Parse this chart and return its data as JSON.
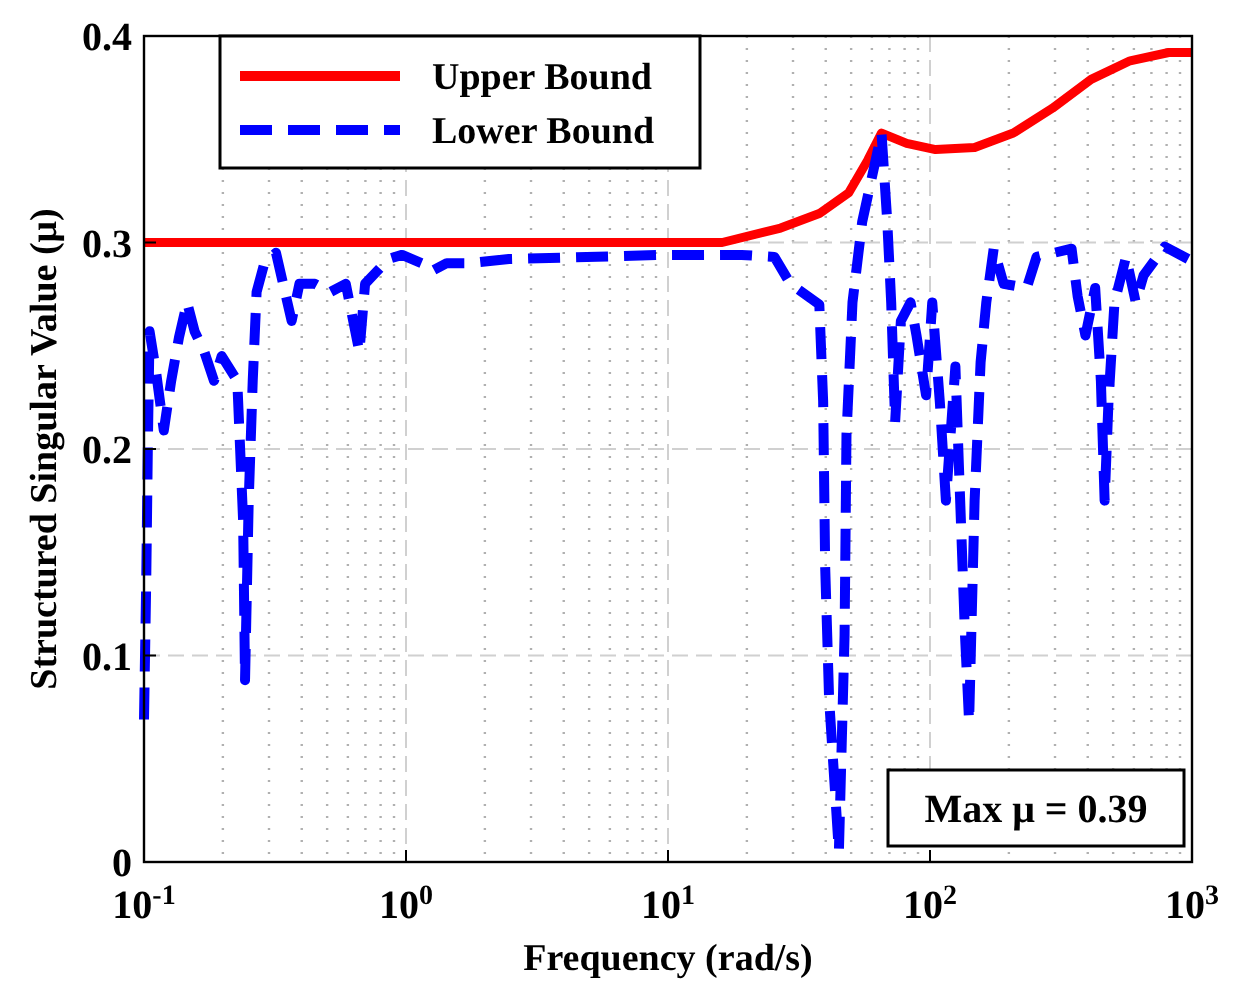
{
  "chart_data": {
    "type": "line",
    "xlabel": "Frequency (rad/s)",
    "ylabel": "Structured Singular Value (μ)",
    "log": "x",
    "xlim": [
      0.1,
      1000
    ],
    "xticks": [
      {
        "value": 0.1,
        "label": "10$^{-1}$"
      },
      {
        "value": 1,
        "label": "10$^{0}$"
      },
      {
        "value": 10,
        "label": "10$^{1}$"
      },
      {
        "value": 100,
        "label": "10$^{2}$"
      },
      {
        "value": 1000,
        "label": "10$^{3}$"
      }
    ],
    "ylim": [
      0,
      0.4
    ],
    "yticks": [
      0,
      0.1,
      0.2,
      0.3,
      0.4
    ],
    "grid": true,
    "legend": "top left",
    "annotations": [
      "Max μ = 0.39"
    ],
    "series": [
      {
        "name": "Upper Bound",
        "color": "#ff0000",
        "line_style": "solid",
        "x": [
          0.1,
          10,
          16.1,
          26.9,
          37.8,
          48.9,
          57.9,
          65.3,
          81.5,
          105,
          148,
          208,
          293,
          412,
          580,
          815,
          1000
        ],
        "values": [
          0.3,
          0.3,
          0.3,
          0.307,
          0.314,
          0.324,
          0.34,
          0.353,
          0.348,
          0.345,
          0.346,
          0.353,
          0.365,
          0.379,
          0.388,
          0.392,
          0.392
        ]
      },
      {
        "name": "Lower Bound",
        "color": "#0000ff",
        "line_style": "dashed",
        "x": [
          0.1,
          0.102,
          0.1035,
          0.105,
          0.111,
          0.119,
          0.127,
          0.136,
          0.146,
          0.156,
          0.17,
          0.185,
          0.198,
          0.227,
          0.239,
          0.243,
          0.251,
          0.26,
          0.269,
          0.288,
          0.319,
          0.366,
          0.392,
          0.449,
          0.514,
          0.589,
          0.664,
          0.698,
          0.774,
          0.857,
          0.966,
          1.146,
          1.248,
          1.431,
          1.756,
          2.47,
          4.89,
          9.66,
          19.1,
          25.5,
          29.3,
          37.8,
          39.1,
          39.8,
          41.2,
          44.9,
          47.2,
          48,
          50.6,
          55.1,
          65.3,
          68.7,
          71.1,
          73.6,
          77.4,
          84.3,
          88.8,
          96.6,
          102,
          109,
          115,
          125,
          129,
          136,
          141,
          148,
          156,
          164,
          175,
          191,
          234,
          255,
          347,
          366,
          392,
          427,
          449,
          464,
          480,
          506,
          560,
          610,
          653,
          787,
          966
        ],
        "values": [
          0.069,
          0.137,
          0.204,
          0.257,
          0.238,
          0.209,
          0.233,
          0.254,
          0.271,
          0.257,
          0.247,
          0.233,
          0.245,
          0.233,
          0.165,
          0.088,
          0.175,
          0.233,
          0.276,
          0.29,
          0.295,
          0.262,
          0.28,
          0.28,
          0.276,
          0.28,
          0.247,
          0.28,
          0.286,
          0.292,
          0.294,
          0.29,
          0.286,
          0.29,
          0.29,
          0.292,
          0.293,
          0.294,
          0.294,
          0.293,
          0.28,
          0.27,
          0.223,
          0.143,
          0.079,
          0.005,
          0.11,
          0.207,
          0.271,
          0.31,
          0.353,
          0.31,
          0.271,
          0.213,
          0.262,
          0.271,
          0.255,
          0.226,
          0.271,
          0.223,
          0.175,
          0.24,
          0.191,
          0.11,
          0.068,
          0.175,
          0.242,
          0.271,
          0.297,
          0.28,
          0.278,
          0.293,
          0.297,
          0.274,
          0.255,
          0.278,
          0.233,
          0.175,
          0.223,
          0.271,
          0.293,
          0.271,
          0.284,
          0.298,
          0.292
        ]
      }
    ]
  }
}
